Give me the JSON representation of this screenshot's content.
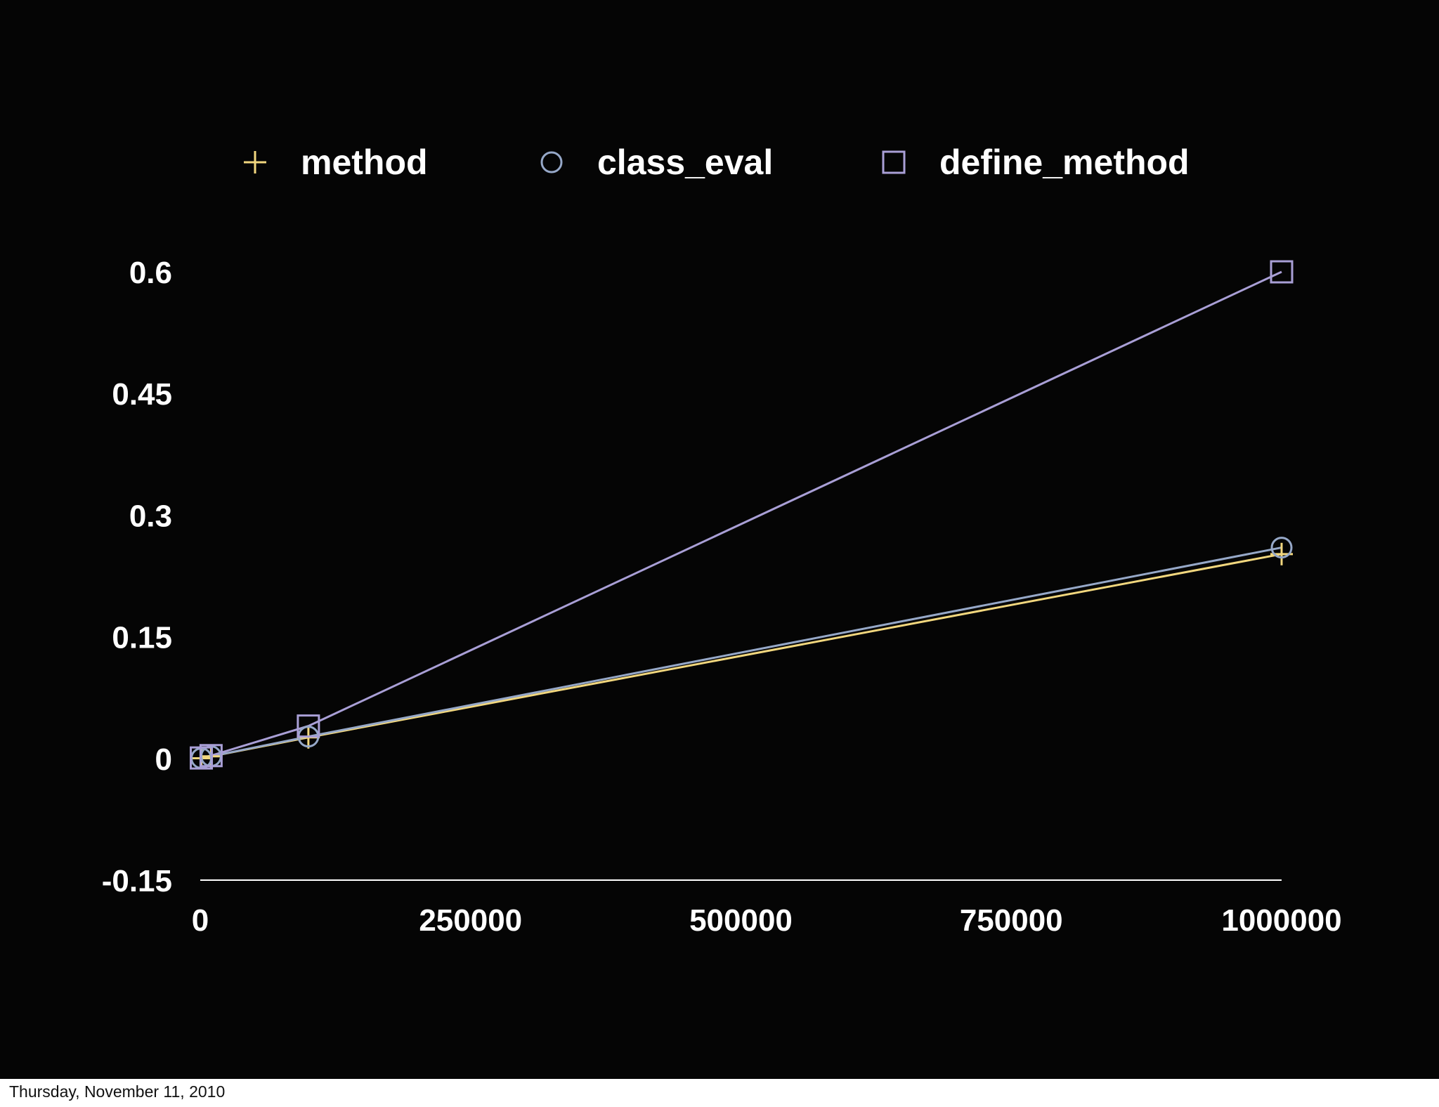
{
  "footer": {
    "date": "Thursday, November 11, 2010"
  },
  "colors": {
    "background": "#050505",
    "axis": "#ffffff",
    "text": "#ffffff"
  },
  "chart_data": {
    "type": "line",
    "title": "",
    "xlabel": "",
    "ylabel": "",
    "xlim": [
      0,
      1000000
    ],
    "ylim": [
      -0.15,
      0.6
    ],
    "x_ticks": [
      0,
      250000,
      500000,
      750000,
      1000000
    ],
    "x_tick_labels": [
      "0",
      "250000",
      "500000",
      "750000",
      "1000000"
    ],
    "y_ticks": [
      -0.15,
      0,
      0.15,
      0.3,
      0.45,
      0.6
    ],
    "y_tick_labels": [
      "-0.15",
      "0",
      "0.15",
      "0.3",
      "0.45",
      "0.6"
    ],
    "grid": false,
    "legend_position": "top",
    "x": [
      1000,
      10000,
      100000,
      1000000
    ],
    "series": [
      {
        "name": "method",
        "marker": "plus",
        "color": "#f2d77e",
        "values": [
          0.0003,
          0.0026,
          0.026,
          0.252
        ]
      },
      {
        "name": "class_eval",
        "marker": "circle",
        "color": "#96a8c8",
        "values": [
          0.0003,
          0.0027,
          0.027,
          0.26
        ]
      },
      {
        "name": "define_method",
        "marker": "square",
        "color": "#a99fd6",
        "values": [
          0.0006,
          0.0035,
          0.04,
          0.6
        ]
      }
    ]
  }
}
